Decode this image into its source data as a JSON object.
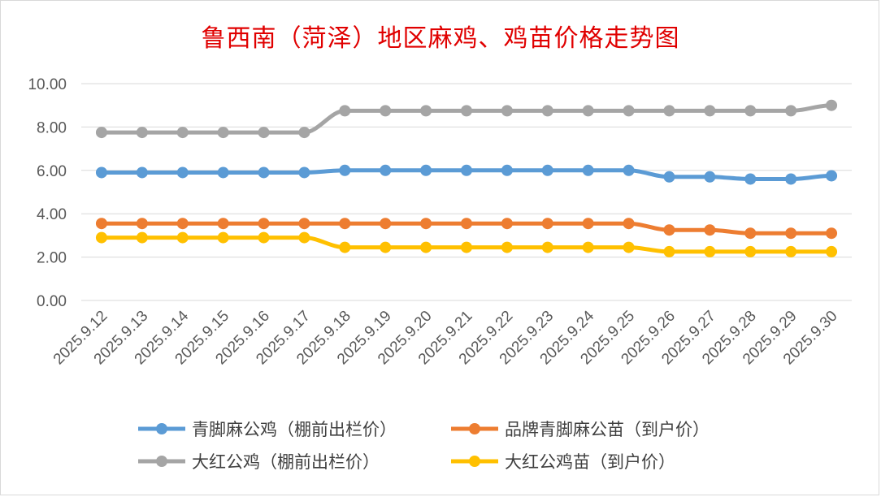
{
  "chart_data": {
    "type": "line",
    "title": "鲁西南（菏泽）地区麻鸡、鸡苗价格走势图",
    "x": [
      "2025.9.12",
      "2025.9.13",
      "2025.9.14",
      "2025.9.15",
      "2025.9.16",
      "2025.9.17",
      "2025.9.18",
      "2025.9.19",
      "2025.9.20",
      "2025.9.21",
      "2025.9.22",
      "2025.9.23",
      "2025.9.24",
      "2025.9.25",
      "2025.9.26",
      "2025.9.27",
      "2025.9.28",
      "2025.9.29",
      "2025.9.30"
    ],
    "ylim": [
      0,
      10
    ],
    "yticks": [
      "0.00",
      "2.00",
      "4.00",
      "6.00",
      "8.00",
      "10.00"
    ],
    "grid": "horizontal",
    "legend_position": "bottom",
    "series": [
      {
        "name": "青脚麻公鸡（棚前出栏价）",
        "color": "#5b9bd5",
        "values": [
          5.9,
          5.9,
          5.9,
          5.9,
          5.9,
          5.9,
          6.0,
          6.0,
          6.0,
          6.0,
          6.0,
          6.0,
          6.0,
          6.0,
          5.7,
          5.7,
          5.6,
          5.6,
          5.75
        ]
      },
      {
        "name": "品牌青脚麻公苗（到户价）",
        "color": "#ed7d31",
        "values": [
          3.55,
          3.55,
          3.55,
          3.55,
          3.55,
          3.55,
          3.55,
          3.55,
          3.55,
          3.55,
          3.55,
          3.55,
          3.55,
          3.55,
          3.25,
          3.25,
          3.1,
          3.1,
          3.1
        ]
      },
      {
        "name": "大红公鸡（棚前出栏价）",
        "color": "#a5a5a5",
        "values": [
          7.75,
          7.75,
          7.75,
          7.75,
          7.75,
          7.75,
          8.75,
          8.75,
          8.75,
          8.75,
          8.75,
          8.75,
          8.75,
          8.75,
          8.75,
          8.75,
          8.75,
          8.75,
          9.0
        ]
      },
      {
        "name": "大红公鸡苗（到户价）",
        "color": "#ffc000",
        "values": [
          2.9,
          2.9,
          2.9,
          2.9,
          2.9,
          2.9,
          2.45,
          2.45,
          2.45,
          2.45,
          2.45,
          2.45,
          2.45,
          2.45,
          2.25,
          2.25,
          2.25,
          2.25,
          2.25
        ]
      }
    ]
  }
}
